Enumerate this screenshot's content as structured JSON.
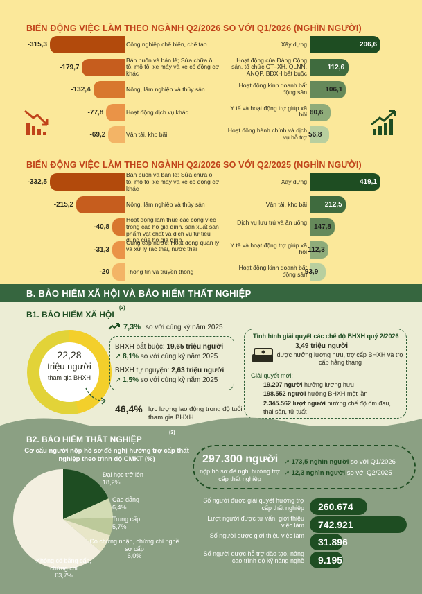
{
  "colors": {
    "dark_green": "#1e4d22",
    "orange_dark": "#b24a0c",
    "accent_red": "#c0431a"
  },
  "section1": {
    "title": "BIẾN ĐỘNG VIỆC LÀM THEO NGÀNH Q2/2026 SO VỚI Q1/2026 (NGHÌN NGƯỜI)",
    "left": [
      {
        "value": "-315,3",
        "num": -315.3,
        "label": "Công nghiệp chế biến, chế tạo"
      },
      {
        "value": "-179,7",
        "num": -179.7,
        "label": "Bán buôn và bán lẻ; Sửa chữa ô tô, mô tô, xe máy và xe có động cơ khác"
      },
      {
        "value": "-132,4",
        "num": -132.4,
        "label": "Nông, lâm nghiệp và thủy sản"
      },
      {
        "value": "-77,8",
        "num": -77.8,
        "label": "Hoạt động dịch vụ khác"
      },
      {
        "value": "-69,2",
        "num": -69.2,
        "label": "Vận tải, kho bãi"
      }
    ],
    "right": [
      {
        "value": "206,6",
        "num": 206.6,
        "label": "Xây dựng"
      },
      {
        "value": "112,6",
        "num": 112.6,
        "label": "Hoạt động của Đảng Cộng sản, tổ chức CT–XH, QLNN, ANQP, BĐXH bắt buộc"
      },
      {
        "value": "106,1",
        "num": 106.1,
        "label": "Hoạt động kinh doanh bất động sản"
      },
      {
        "value": "60,6",
        "num": 60.6,
        "label": "Y tế và hoạt động trợ giúp xã hội"
      },
      {
        "value": "56,8",
        "num": 56.8,
        "label": "Hoạt động hành chính và dịch vụ hỗ trợ"
      }
    ]
  },
  "section2": {
    "title": "BIẾN ĐỘNG VIỆC LÀM THEO NGÀNH Q2/2026 SO VỚI Q2/2025 (NGHÌN NGƯỜI)",
    "left": [
      {
        "value": "-332,5",
        "num": -332.5,
        "label": "Bán buôn và bán lẻ; Sửa chữa ô tô, mô tô, xe máy và xe có động cơ khác"
      },
      {
        "value": "-215,2",
        "num": -215.2,
        "label": "Nông, lâm nghiệp và thủy sản"
      },
      {
        "value": "-40,8",
        "num": -40.8,
        "label": "Hoạt động làm thuê các công việc trong các hộ gia đình, sản xuất sản phẩm vật chất và dịch vụ tự tiêu dùng của hộ gia đình"
      },
      {
        "value": "-31,3",
        "num": -31.3,
        "label": "Cung cấp nước; Hoạt động quản lý và xử lý rác thải, nước thải"
      },
      {
        "value": "-20",
        "num": -20,
        "label": "Thông tin và truyền thông"
      }
    ],
    "right": [
      {
        "value": "419,1",
        "num": 419.1,
        "label": "Xây dựng"
      },
      {
        "value": "212,5",
        "num": 212.5,
        "label": "Vận tải, kho bãi"
      },
      {
        "value": "147,8",
        "num": 147.8,
        "label": "Dịch vụ lưu trú và ăn uống"
      },
      {
        "value": "112,3",
        "num": 112.3,
        "label": "Y tế và hoạt động trợ giúp xã hội"
      },
      {
        "value": "93,9",
        "num": 93.9,
        "label": "Hoạt động kinh doanh bất động sản"
      }
    ]
  },
  "sectionB": {
    "title": "B. BẢO HIỂM XÃ HỘI VÀ BẢO HIỂM THẤT NGHIỆP",
    "b1_title": "B1. BẢO HIỂM XÃ HỘI",
    "b1_sup": "(2)",
    "ring_value": "22,28",
    "ring_unit": "triệu người",
    "ring_caption": "tham gia BHXH",
    "ring_fraction": 0.464,
    "growth_pct": "7,3%",
    "growth_text": "so với cùng kỳ năm 2025",
    "mandatory_label": "BHXH bắt buộc:",
    "mandatory_value": "19,65 triệu người",
    "mandatory_pct": "8,1%",
    "mandatory_cmp": "so với cùng kỳ năm 2025",
    "voluntary_label": "BHXH tự nguyện:",
    "voluntary_value": "2,63 triệu người",
    "voluntary_pct": "1,5%",
    "voluntary_cmp": "so với cùng kỳ năm 2025",
    "share_pct": "46,4%",
    "share_text": "lực lượng lao động trong độ tuổi tham gia BHXH",
    "regime_title": "Tình hình giải quyết các chế độ BHXH quý 2/2026",
    "regime_value": "3,49 triệu người",
    "regime_desc": "được hưởng lương hưu, trợ cấp BHXH và trợ cấp hằng tháng",
    "new_title": "Giải quyết mới:",
    "new1_value": "19.207 người",
    "new1_text": "hưởng lương hưu",
    "new2_value": "198.552 người",
    "new2_text": "hưởng BHXH một lần",
    "new3_value": "2.345.562 lượt người",
    "new3_text": "hưởng chế độ ốm đau, thai sản, tử tuất"
  },
  "b2": {
    "title": "B2. BẢO HIỂM THẤT NGHIỆP",
    "sup": "(3)",
    "pie_title": "Cơ cấu người nộp hồ sơ đề nghị hưởng trợ cấp thất nghiệp theo trình độ CMKT (%)",
    "applicants_value": "297.300 người",
    "applicants_text": "nộp hồ sơ đề nghị hưởng trợ cấp thất nghiệp",
    "cmp1_value": "173,5 nghìn người",
    "cmp1_text": "so với Q1/2026",
    "cmp2_value": "12,3 nghìn người",
    "cmp2_text": "so với Q2/2025",
    "stats": [
      {
        "label": "Số người được giải quyết hưởng trợ cấp thất nghiệp",
        "value": "260.674",
        "num": 260674
      },
      {
        "label": "Lượt người được tư vấn, giới thiệu việc làm",
        "value": "742.921",
        "num": 742921
      },
      {
        "label": "Số người được giới thiệu việc làm",
        "value": "31.896",
        "num": 31896
      },
      {
        "label": "Số người được hỗ trợ đào tạo, nâng cao trình độ kỹ năng nghề",
        "value": "9.195",
        "num": 9195
      }
    ]
  },
  "chart_data": [
    {
      "type": "bar",
      "title": "BIẾN ĐỘNG VIỆC LÀM THEO NGÀNH Q2/2026 SO VỚI Q1/2026 (NGHÌN NGƯỜI)",
      "categories": [
        "Công nghiệp chế biến, chế tạo",
        "Bán buôn và bán lẻ; Sửa chữa ô tô, mô tô, xe máy và xe có động cơ khác",
        "Nông, lâm nghiệp và thủy sản",
        "Hoạt động dịch vụ khác",
        "Vận tải, kho bãi",
        "Xây dựng",
        "Hoạt động của Đảng Cộng sản, tổ chức CT–XH, QLNN, ANQP, BĐXH bắt buộc",
        "Hoạt động kinh doanh bất động sản",
        "Y tế và hoạt động trợ giúp xã hội",
        "Hoạt động hành chính và dịch vụ hỗ trợ"
      ],
      "values": [
        -315.3,
        -179.7,
        -132.4,
        -77.8,
        -69.2,
        206.6,
        112.6,
        106.1,
        60.6,
        56.8
      ]
    },
    {
      "type": "bar",
      "title": "BIẾN ĐỘNG VIỆC LÀM THEO NGÀNH Q2/2026 SO VỚI Q2/2025 (NGHÌN NGƯỜI)",
      "categories": [
        "Bán buôn và bán lẻ; Sửa chữa ô tô, mô tô, xe máy và xe có động cơ khác",
        "Nông, lâm nghiệp và thủy sản",
        "Hoạt động làm thuê các công việc trong các hộ gia đình, sản xuất sản phẩm vật chất và dịch vụ tự tiêu dùng của hộ gia đình",
        "Cung cấp nước; Hoạt động quản lý và xử lý rác thải, nước thải",
        "Thông tin và truyền thông",
        "Xây dựng",
        "Vận tải, kho bãi",
        "Dịch vụ lưu trú và ăn uống",
        "Y tế và hoạt động trợ giúp xã hội",
        "Hoạt động kinh doanh bất động sản"
      ],
      "values": [
        -332.5,
        -215.2,
        -40.8,
        -31.3,
        -20,
        419.1,
        212.5,
        147.8,
        112.3,
        93.9
      ]
    },
    {
      "type": "pie",
      "title": "Cơ cấu người nộp hồ sơ đề nghị hưởng trợ cấp thất nghiệp theo trình độ CMKT (%)",
      "slices": [
        {
          "label": "Đại học trở lên",
          "value": 18.2,
          "value_label": "18,2%",
          "color": "#1e4d22"
        },
        {
          "label": "Cao đẳng",
          "value": 6.4,
          "value_label": "6,4%",
          "color": "#d3dcb4"
        },
        {
          "label": "Trung cấp",
          "value": 5.7,
          "value_label": "5,7%",
          "color": "#bcc99a"
        },
        {
          "label": "Có chứng nhận, chứng chỉ nghề sơ cấp",
          "value": 6.0,
          "value_label": "6,0%",
          "color": "#e8e6c8"
        },
        {
          "label": "Không có bằng cấp, chứng chỉ",
          "value": 63.7,
          "value_label": "63,7%",
          "color": "#f3efe0"
        }
      ]
    }
  ]
}
